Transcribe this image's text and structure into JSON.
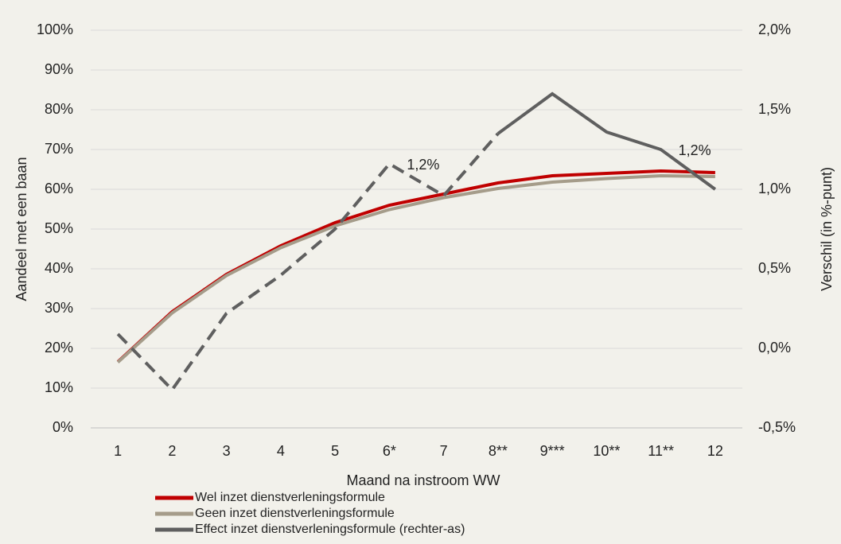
{
  "chart_data": {
    "type": "line",
    "categories": [
      "1",
      "2",
      "3",
      "4",
      "5",
      "6*",
      "7",
      "8**",
      "9***",
      "10**",
      "11**",
      "12"
    ],
    "x_label": "Maand na instroom WW",
    "y_label": "Aandeel met een baan",
    "y2_label": "Verschil (in %-punt)",
    "ylim": [
      0,
      100
    ],
    "yticks": [
      {
        "value": 0,
        "label": "0%"
      },
      {
        "value": 10,
        "label": "10%"
      },
      {
        "value": 20,
        "label": "20%"
      },
      {
        "value": 30,
        "label": "30%"
      },
      {
        "value": 40,
        "label": "40%"
      },
      {
        "value": 50,
        "label": "50%"
      },
      {
        "value": 60,
        "label": "60%"
      },
      {
        "value": 70,
        "label": "70%"
      },
      {
        "value": 80,
        "label": "80%"
      },
      {
        "value": 90,
        "label": "90%"
      },
      {
        "value": 100,
        "label": "100%"
      }
    ],
    "y2lim": [
      -0.5,
      2.0
    ],
    "y2ticks": [
      {
        "value": -0.5,
        "label": "-0,5%"
      },
      {
        "value": 0.0,
        "label": "0,0%"
      },
      {
        "value": 0.5,
        "label": "0,5%"
      },
      {
        "value": 1.0,
        "label": "1,0%"
      },
      {
        "value": 1.5,
        "label": "1,5%"
      },
      {
        "value": 2.0,
        "label": "2,0%"
      }
    ],
    "grid": true,
    "legend": "bottom",
    "series": [
      {
        "name": "Wel inzet dienstverleningsformule",
        "color": "#c00000",
        "values": [
          16.6,
          29.2,
          38.6,
          45.8,
          51.6,
          56.0,
          58.8,
          61.6,
          63.4,
          64.0,
          64.6,
          64.2
        ]
      },
      {
        "name": "Geen inzet dienstverleningsformule",
        "color": "#a59c8a",
        "values": [
          16.5,
          28.9,
          38.3,
          45.3,
          50.8,
          54.9,
          57.9,
          60.2,
          61.8,
          62.7,
          63.4,
          63.2
        ]
      },
      {
        "name": "Effect inzet dienstverleningsformule (rechter-as)",
        "color": "#5f5f5f",
        "axis": "y2",
        "dashed_to_index": 7,
        "values": [
          0.09,
          -0.26,
          0.22,
          0.46,
          0.75,
          1.16,
          0.96,
          1.35,
          1.6,
          1.36,
          1.25,
          1.0
        ],
        "value_labels": [
          null,
          null,
          null,
          null,
          null,
          "1,2%",
          null,
          null,
          null,
          null,
          "1,2%",
          null
        ]
      }
    ]
  }
}
